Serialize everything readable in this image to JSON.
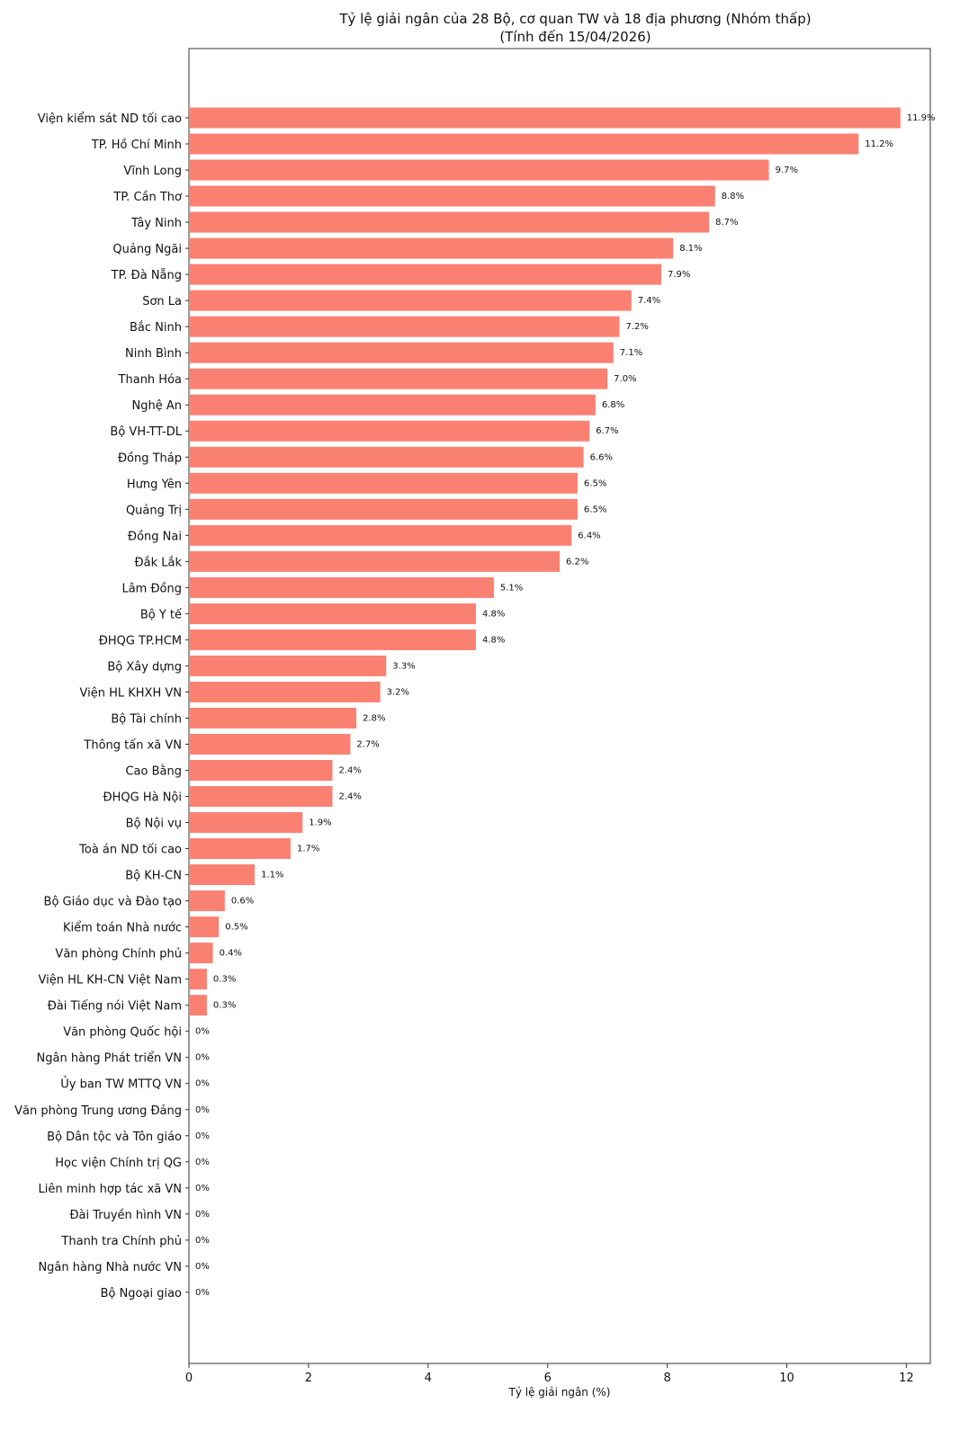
{
  "chart_data": {
    "type": "bar",
    "orientation": "horizontal",
    "title": "Tỷ lệ giải ngân của 28 Bộ, cơ quan TW và 18 địa phương (Nhóm thấp)",
    "subtitle": "(Tính đến 15/04/2026)",
    "xlabel": "Tỷ lệ giải ngân (%)",
    "ylabel": "",
    "xlim": [
      0,
      12.4
    ],
    "xticks": [
      0,
      2,
      4,
      6,
      8,
      10,
      12
    ],
    "bar_color": "#fa8072",
    "grid": false,
    "categories": [
      "Viện kiểm sát ND tối cao",
      "TP. Hồ Chí Minh",
      "Vĩnh Long",
      "TP. Cần Thơ",
      "Tây Ninh",
      "Quảng Ngãi",
      "TP. Đà Nẵng",
      "Sơn La",
      "Bắc Ninh",
      "Ninh Bình",
      "Thanh Hóa",
      "Nghệ An",
      "Bộ VH-TT-DL",
      "Đồng Tháp",
      "Hưng Yên",
      "Quảng Trị",
      "Đồng Nai",
      "Đắk Lắk",
      "Lâm Đồng",
      "Bộ Y tế",
      "ĐHQG TP.HCM",
      "Bộ Xây dựng",
      "Viện HL KHXH VN",
      "Bộ Tài chính",
      "Thông tấn xã VN",
      "Cao Bằng",
      "ĐHQG Hà Nội",
      "Bộ Nội vụ",
      "Toà án ND tối cao",
      "Bộ KH-CN",
      "Bộ Giáo dục và Đào tạo",
      "Kiểm toán Nhà nước",
      "Văn phòng Chính phủ",
      "Viện HL KH-CN Việt Nam",
      "Đài Tiếng nói Việt Nam",
      "Văn phòng Quốc hội",
      "Ngân hàng Phát triển VN",
      "Ủy ban TW MTTQ VN",
      "Văn phòng Trung ương Đảng",
      "Bộ Dân tộc và Tôn giáo",
      "Học viện Chính trị QG",
      "Liên minh hợp tác xã VN",
      "Đài Truyền hình VN",
      "Thanh tra Chính phủ",
      "Ngân hàng Nhà nước VN",
      "Bộ Ngoại giao"
    ],
    "values": [
      11.9,
      11.2,
      9.7,
      8.8,
      8.7,
      8.1,
      7.9,
      7.4,
      7.2,
      7.1,
      7.0,
      6.8,
      6.7,
      6.6,
      6.5,
      6.5,
      6.4,
      6.2,
      5.1,
      4.8,
      4.8,
      3.3,
      3.2,
      2.8,
      2.7,
      2.4,
      2.4,
      1.9,
      1.7,
      1.1,
      0.6,
      0.5,
      0.4,
      0.3,
      0.3,
      0,
      0,
      0,
      0,
      0,
      0,
      0,
      0,
      0,
      0,
      0
    ],
    "value_labels": [
      "11.9%",
      "11.2%",
      "9.7%",
      "8.8%",
      "8.7%",
      "8.1%",
      "7.9%",
      "7.4%",
      "7.2%",
      "7.1%",
      "7.0%",
      "6.8%",
      "6.7%",
      "6.6%",
      "6.5%",
      "6.5%",
      "6.4%",
      "6.2%",
      "5.1%",
      "4.8%",
      "4.8%",
      "3.3%",
      "3.2%",
      "2.8%",
      "2.7%",
      "2.4%",
      "2.4%",
      "1.9%",
      "1.7%",
      "1.1%",
      "0.6%",
      "0.5%",
      "0.4%",
      "0.3%",
      "0.3%",
      "0%",
      "0%",
      "0%",
      "0%",
      "0%",
      "0%",
      "0%",
      "0%",
      "0%",
      "0%",
      "0%"
    ]
  }
}
